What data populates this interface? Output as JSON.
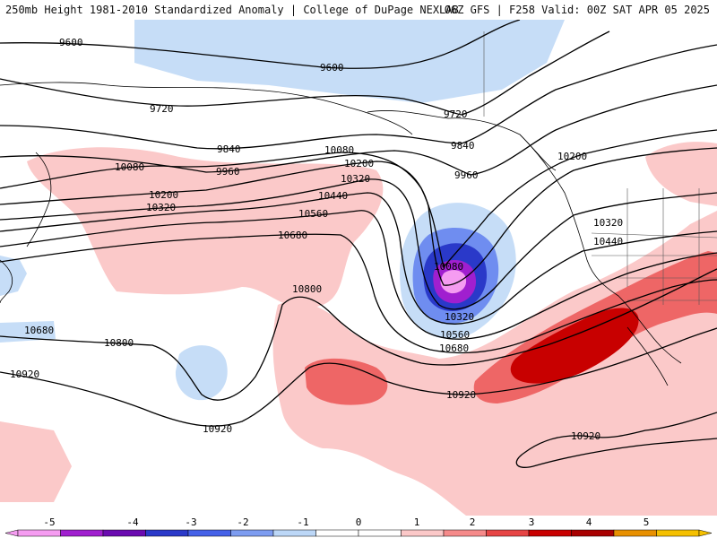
{
  "header": {
    "title_left": "250mb Height 1981-2010 Standardized Anomaly | College of DuPage NEXLAB",
    "title_right": "06Z GFS | F258 Valid: 00Z SAT APR 05 2025"
  },
  "contour_labels": [
    "9600",
    "9600",
    "9720",
    "9720",
    "9840",
    "9840",
    "9960",
    "9960",
    "10080",
    "10080",
    "10080",
    "10200",
    "10200",
    "10200",
    "10320",
    "10320",
    "10320",
    "10320",
    "10440",
    "10440",
    "10560",
    "10560",
    "10680",
    "10680",
    "10680",
    "10800",
    "10800",
    "10920",
    "10920",
    "10920",
    "10920"
  ],
  "colorbar": {
    "ticks": [
      "-5",
      "-4",
      "-3",
      "-2",
      "-1",
      "0",
      "1",
      "2",
      "3",
      "4",
      "5"
    ],
    "colors": [
      "#f59cf1",
      "#a01fcf",
      "#6a0ab0",
      "#2a39c9",
      "#4561e8",
      "#7d9cf0",
      "#bcd7f7",
      "#ffffff",
      "#ffffff",
      "#fbc8c8",
      "#f58a8a",
      "#e64545",
      "#c80000",
      "#a80000",
      "#e89000",
      "#f5c000"
    ]
  },
  "anomaly_colors": {
    "strong_positive": "#c80000",
    "moderate_positive": "#ee6666",
    "weak_positive": "#fbc9c9",
    "weak_negative": "#c6ddf7",
    "moderate_negative": "#6f8df0",
    "strong_negative": "#2a39c9",
    "extreme_negative": "#a01fcf",
    "core_negative": "#f59cf1"
  }
}
